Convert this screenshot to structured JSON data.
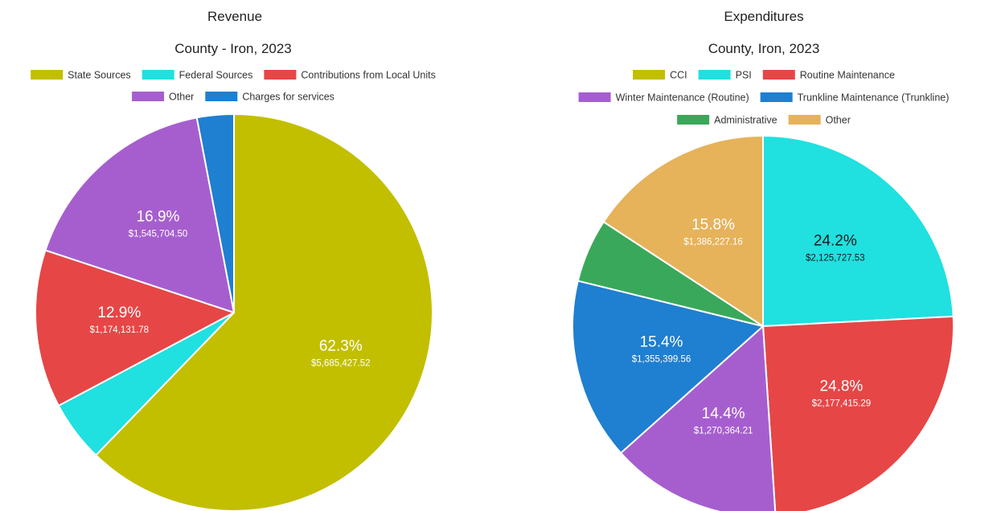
{
  "chart_data": [
    {
      "type": "pie",
      "title": "Revenue",
      "subtitle": "County - Iron, 2023",
      "legend_position": "top",
      "slices": [
        {
          "label": "State Sources",
          "value": 5685427.52,
          "percent": "62.3%",
          "value_label": "$5,685,427.52",
          "color": "#c2bf00"
        },
        {
          "label": "Federal Sources",
          "value": 456000,
          "percent": "",
          "value_label": "",
          "color": "#20e0e0"
        },
        {
          "label": "Contributions from Local Units",
          "value": 1174131.78,
          "percent": "12.9%",
          "value_label": "$1,174,131.78",
          "color": "#e64646"
        },
        {
          "label": "Other",
          "value": 1545704.5,
          "percent": "16.9%",
          "value_label": "$1,545,704.50",
          "color": "#a65ecf"
        },
        {
          "label": "Charges for services",
          "value": 274000,
          "percent": "",
          "value_label": "",
          "color": "#1f7fd0"
        }
      ]
    },
    {
      "type": "pie",
      "title": "Expenditures",
      "subtitle": "County, Iron, 2023",
      "legend_position": "top",
      "slices": [
        {
          "label": "CCI",
          "value": 0,
          "percent": "",
          "value_label": "",
          "color": "#c2bf00"
        },
        {
          "label": "PSI",
          "value": 2125727.53,
          "percent": "24.2%",
          "value_label": "$2,125,727.53",
          "color": "#20e0e0"
        },
        {
          "label": "Routine Maintenance",
          "value": 2177415.29,
          "percent": "24.8%",
          "value_label": "$2,177,415.29",
          "color": "#e64646"
        },
        {
          "label": "Winter Maintenance (Routine)",
          "value": 1270364.21,
          "percent": "14.4%",
          "value_label": "$1,270,364.21",
          "color": "#a65ecf"
        },
        {
          "label": "Trunkline Maintenance (Trunkline)",
          "value": 1355399.56,
          "percent": "15.4%",
          "value_label": "$1,355,399.56",
          "color": "#1f7fd0"
        },
        {
          "label": "Administrative",
          "value": 475000,
          "percent": "",
          "value_label": "",
          "color": "#3aa85a"
        },
        {
          "label": "Other",
          "value": 1386227.16,
          "percent": "15.8%",
          "value_label": "$1,386,227.16",
          "color": "#e6b25a"
        }
      ]
    }
  ]
}
